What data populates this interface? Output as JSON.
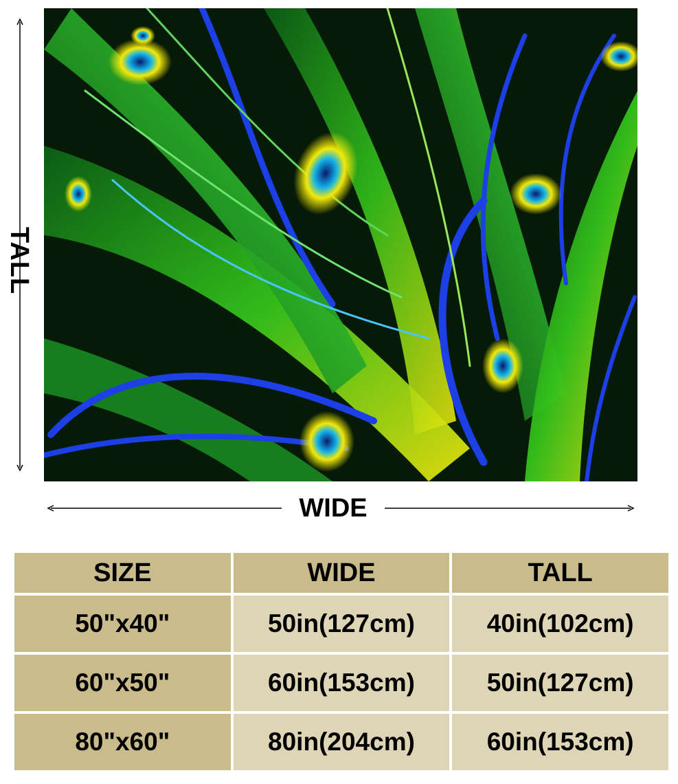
{
  "labels": {
    "tall": "TALL",
    "wide": "WIDE"
  },
  "table": {
    "headers": [
      "SIZE",
      "WIDE",
      "TALL"
    ],
    "rows": [
      [
        "50\"x40\"",
        "50in(127cm)",
        "40in(102cm)"
      ],
      [
        "60\"x50\"",
        "60in(153cm)",
        "50in(127cm)"
      ],
      [
        "80\"x60\"",
        "80in(204cm)",
        "60in(153cm)"
      ]
    ]
  },
  "colors": {
    "header_bg": "#c9bb8b",
    "cell_bg": "#ddd5b6",
    "feather_green": "#1e9b2a",
    "feather_yellow": "#f2e600",
    "feather_blue": "#1c3fe6"
  }
}
